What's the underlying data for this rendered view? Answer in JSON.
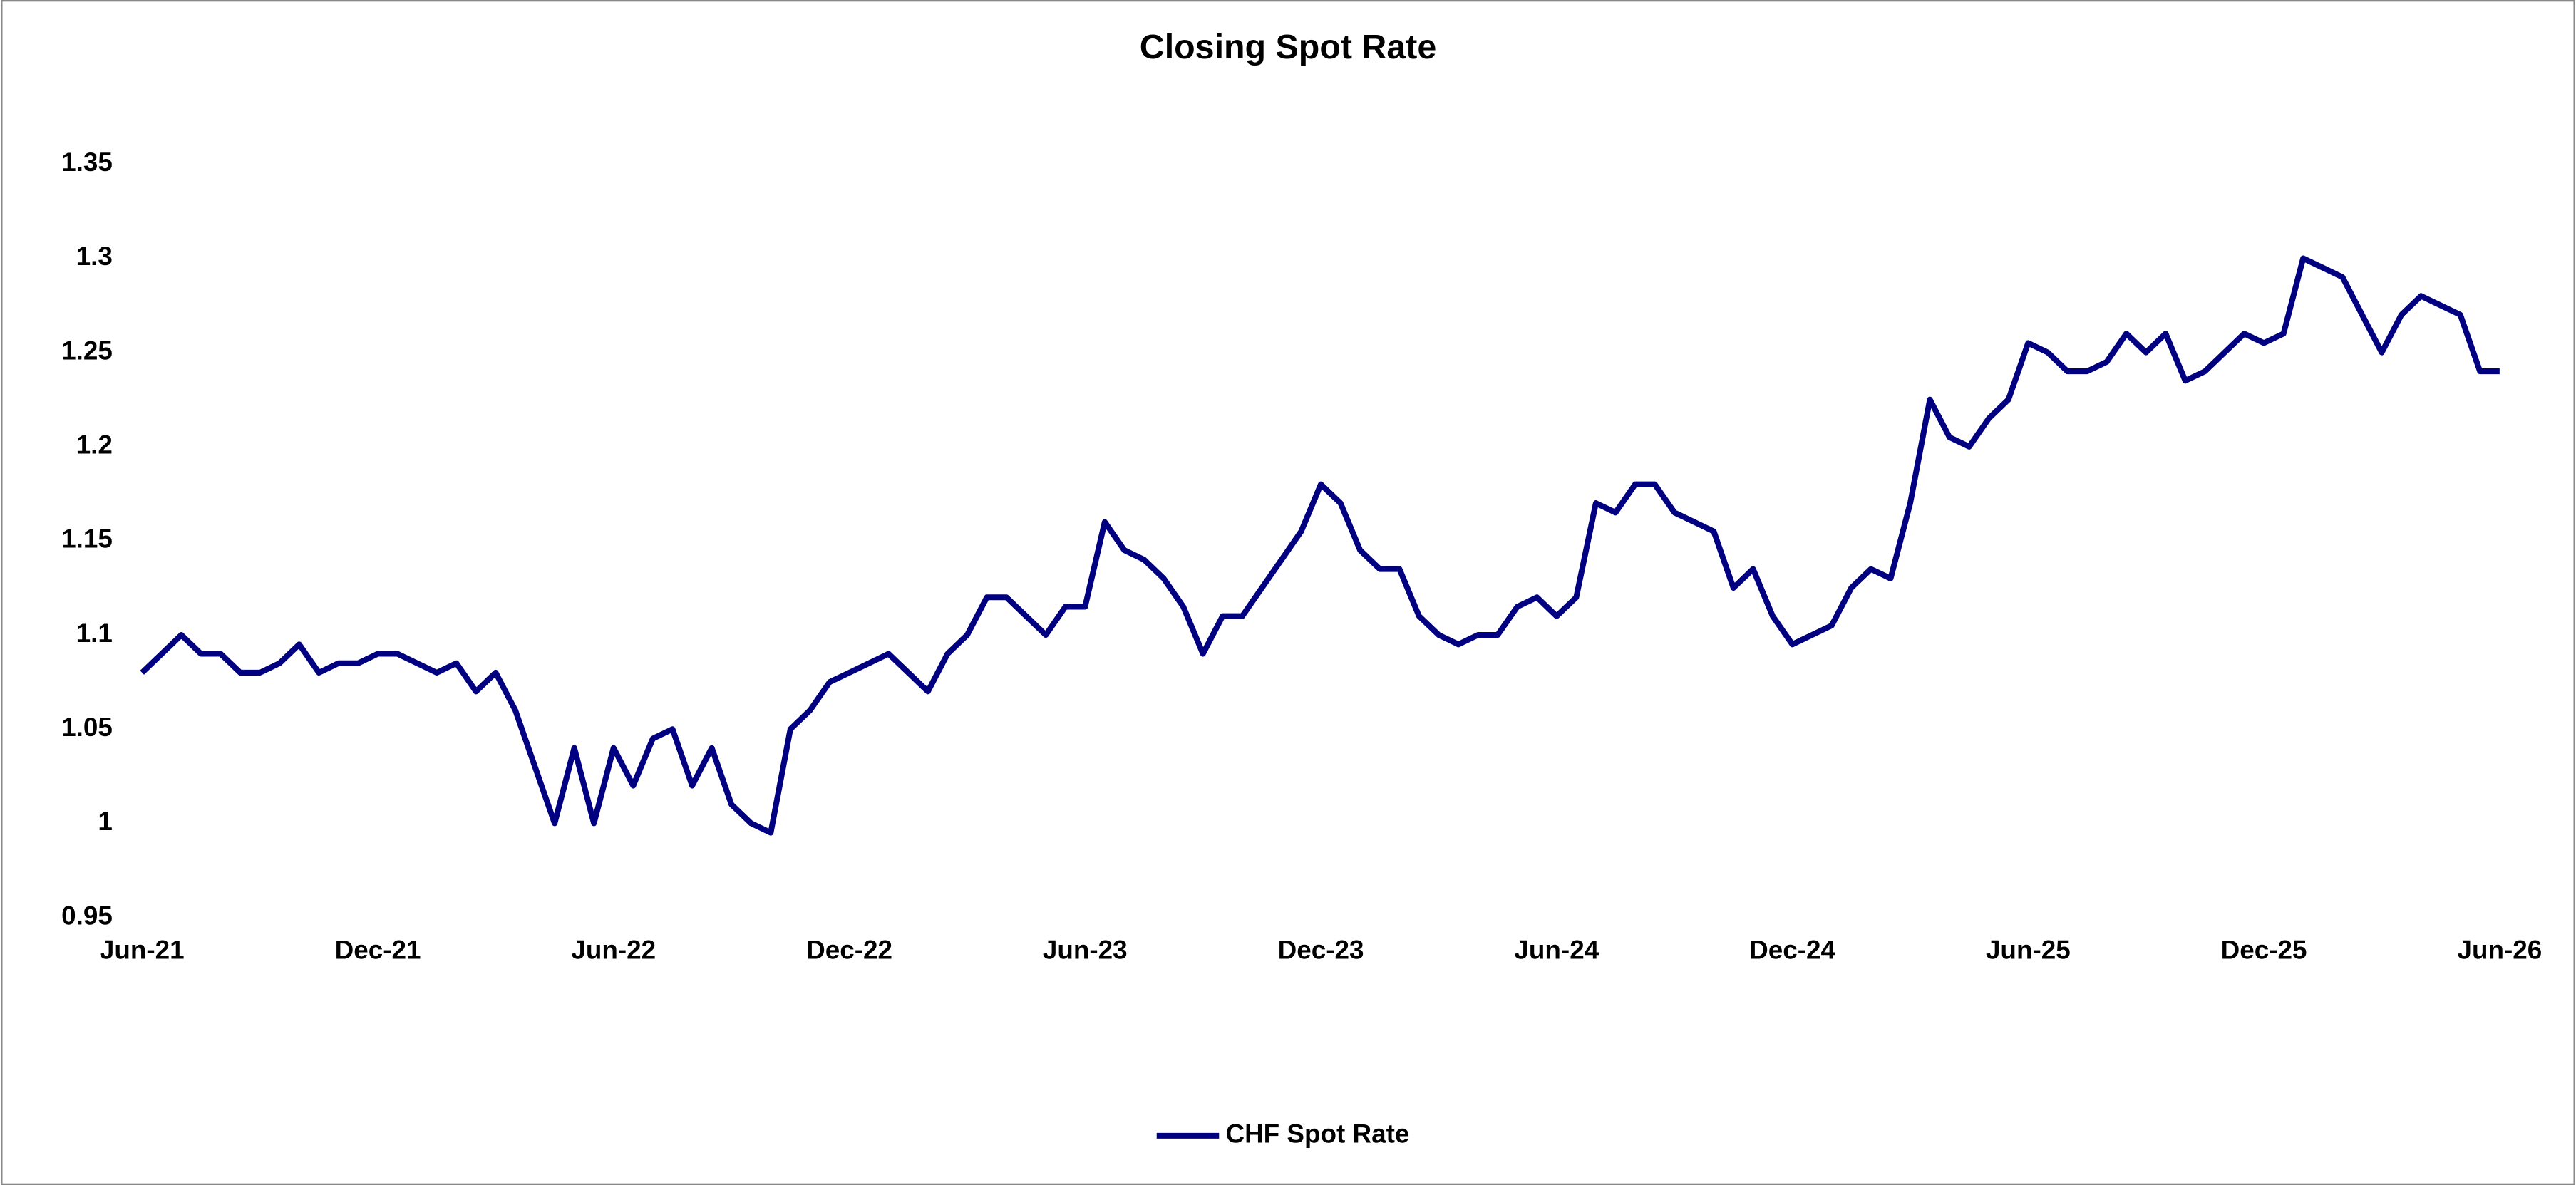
{
  "chart_data": {
    "type": "line",
    "title": "Closing Spot Rate",
    "categories": [
      "Jun-21",
      null,
      null,
      null,
      null,
      null,
      null,
      null,
      null,
      null,
      null,
      null,
      "Dec-21",
      null,
      null,
      null,
      null,
      null,
      null,
      null,
      null,
      null,
      null,
      null,
      "Jun-22",
      null,
      null,
      null,
      null,
      null,
      null,
      null,
      null,
      null,
      null,
      null,
      "Dec-22",
      null,
      null,
      null,
      null,
      null,
      null,
      null,
      null,
      null,
      null,
      null,
      "Jun-23",
      null,
      null,
      null,
      null,
      null,
      null,
      null,
      null,
      null,
      null,
      null,
      "Dec-23",
      null,
      null,
      null,
      null,
      null,
      null,
      null,
      null,
      null,
      null,
      null,
      "Jun-24",
      null,
      null,
      null,
      null,
      null,
      null,
      null,
      null,
      null,
      null,
      null,
      "Dec-24",
      null,
      null,
      null,
      null,
      null,
      null,
      null,
      null,
      null,
      null,
      null,
      "Jun-25",
      null,
      null,
      null,
      null,
      null,
      null,
      null,
      null,
      null,
      null,
      null,
      "Dec-25",
      null,
      null,
      null,
      null,
      null,
      null,
      null,
      null,
      null,
      null,
      null,
      "Jun-26"
    ],
    "series": [
      {
        "name": "CHF Spot Rate",
        "color": "#000080",
        "values": [
          1.08,
          1.09,
          1.1,
          1.09,
          1.09,
          1.08,
          1.08,
          1.085,
          1.095,
          1.08,
          1.085,
          1.085,
          1.09,
          1.09,
          1.085,
          1.08,
          1.085,
          1.07,
          1.08,
          1.06,
          1.03,
          1.0,
          1.04,
          1.0,
          1.04,
          1.02,
          1.045,
          1.05,
          1.02,
          1.04,
          1.01,
          1.0,
          0.995,
          1.05,
          1.06,
          1.075,
          1.08,
          1.085,
          1.09,
          1.08,
          1.07,
          1.09,
          1.1,
          1.12,
          1.12,
          1.11,
          1.1,
          1.115,
          1.115,
          1.16,
          1.145,
          1.14,
          1.13,
          1.115,
          1.09,
          1.11,
          1.11,
          1.125,
          1.14,
          1.155,
          1.18,
          1.17,
          1.145,
          1.135,
          1.135,
          1.11,
          1.1,
          1.095,
          1.1,
          1.1,
          1.115,
          1.12,
          1.11,
          1.12,
          1.17,
          1.165,
          1.18,
          1.18,
          1.165,
          1.16,
          1.155,
          1.125,
          1.135,
          1.11,
          1.095,
          1.1,
          1.105,
          1.125,
          1.135,
          1.13,
          1.17,
          1.225,
          1.205,
          1.2,
          1.215,
          1.225,
          1.255,
          1.25,
          1.24,
          1.24,
          1.245,
          1.26,
          1.25,
          1.26,
          1.235,
          1.24,
          1.25,
          1.26,
          1.255,
          1.26,
          1.3,
          1.295,
          1.29,
          1.27,
          1.25,
          1.27,
          1.28,
          1.275,
          1.27,
          1.24,
          1.24
        ]
      }
    ],
    "ylim": [
      0.95,
      1.35
    ],
    "yticks": [
      0.95,
      1,
      1.05,
      1.1,
      1.15,
      1.2,
      1.25,
      1.3,
      1.35
    ],
    "grid": false,
    "legend": "bottom"
  }
}
